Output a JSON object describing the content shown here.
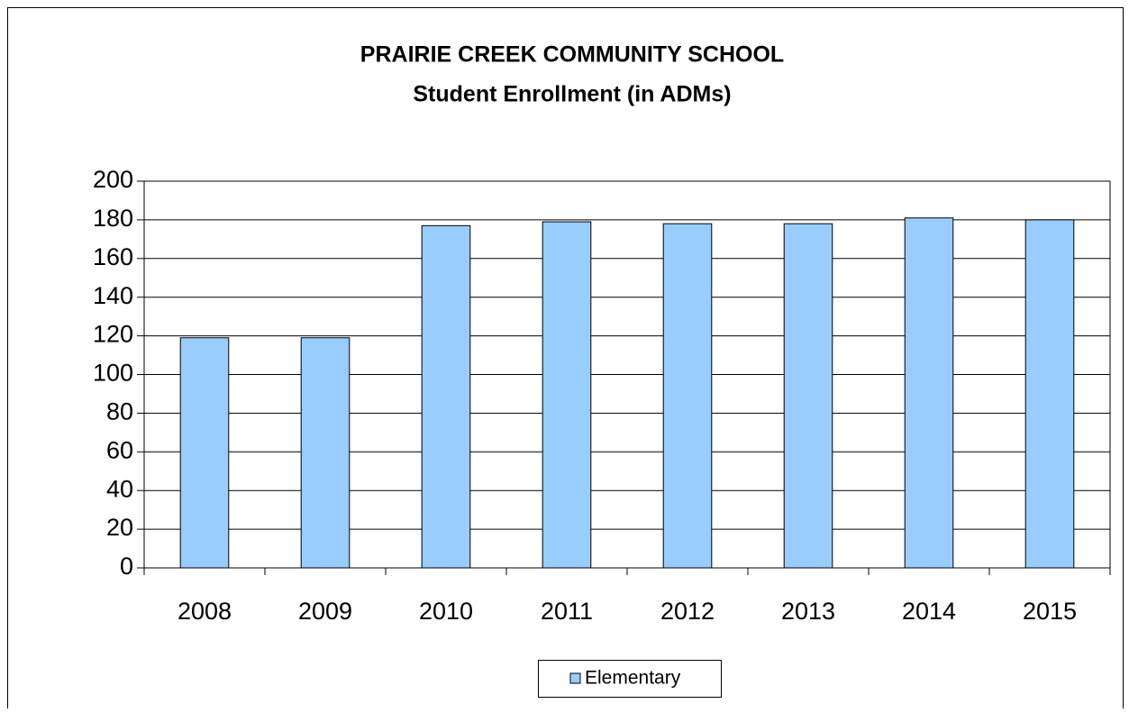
{
  "chart_data": {
    "type": "bar",
    "title": "PRAIRIE CREEK COMMUNITY SCHOOL",
    "subtitle": "Student Enrollment (in ADMs)",
    "categories": [
      "2008",
      "2009",
      "2010",
      "2011",
      "2012",
      "2013",
      "2014",
      "2015"
    ],
    "series": [
      {
        "name": "Elementary",
        "color": "#99ccff",
        "values": [
          119,
          119,
          177,
          179,
          178,
          178,
          181,
          180
        ]
      }
    ],
    "ylim": [
      0,
      200
    ],
    "yticks": [
      0,
      20,
      40,
      60,
      80,
      100,
      120,
      140,
      160,
      180,
      200
    ],
    "grid": true,
    "legend": "bottom"
  }
}
